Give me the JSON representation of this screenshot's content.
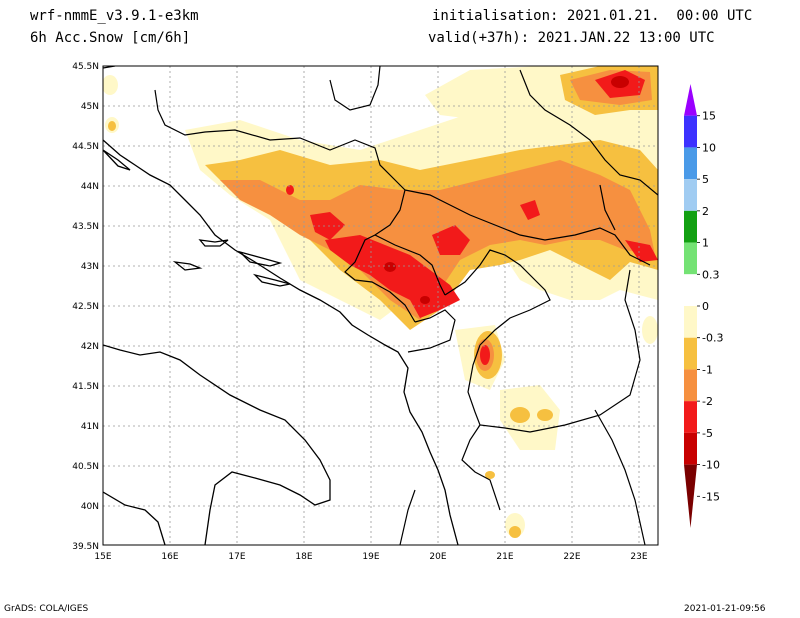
{
  "header": {
    "model": "wrf-nmmE_v3.9.1-e3km",
    "variable": "6h Acc.Snow [cm/6h]",
    "init": "initialisation: 2021.01.21.  00:00 UTC",
    "valid": "valid(+37h): 2021.JAN.22 13:00 UTC"
  },
  "map": {
    "lon_range": [
      15,
      23.3
    ],
    "lat_range": [
      39.5,
      45.5
    ],
    "lon_ticks": [
      "15E",
      "16E",
      "17E",
      "18E",
      "19E",
      "20E",
      "21E",
      "22E",
      "23E"
    ],
    "lat_ticks": [
      "45.5N",
      "45N",
      "44.5N",
      "44N",
      "43.5N",
      "43N",
      "42.5N",
      "42N",
      "41.5N",
      "41N",
      "40.5N",
      "40N",
      "39.5N"
    ]
  },
  "colorbar": {
    "labels": [
      "15",
      "10",
      "5",
      "2",
      "1",
      "0.3",
      "0",
      "-0.3",
      "-1",
      "-2",
      "-5",
      "-10",
      "-15"
    ],
    "colors": [
      "#9a00ff",
      "#3c32ff",
      "#4a9ae8",
      "#a0ccf2",
      "#12a012",
      "#74e274",
      "#ffffff",
      "#fff8c8",
      "#f6c040",
      "#f69040",
      "#f21a1a",
      "#c80000",
      "#7a0000"
    ]
  },
  "footer": {
    "left": "GrADS: COLA/IGES",
    "right": "2021-01-21-09:56"
  }
}
